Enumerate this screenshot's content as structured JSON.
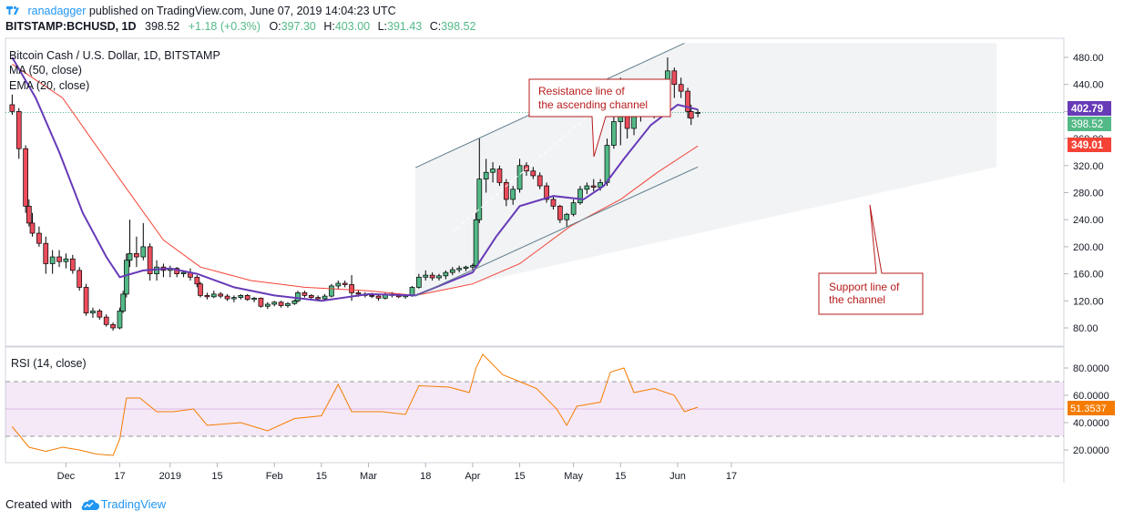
{
  "header": {
    "username": "ranadagger",
    "published_text": " published on TradingView.com, June 07, 2019 14:04:23 UTC",
    "symbol": "BITSTAMP:BCHUSD, 1D",
    "last": "398.52",
    "change": "+1.18 (+0.3%)",
    "o_label": "O:",
    "o": "397.30",
    "h_label": "H:",
    "h": "403.00",
    "l_label": "L:",
    "l": "391.43",
    "c_label": "C:",
    "c": "398.52"
  },
  "legend": {
    "title": "Bitcoin Cash / U.S. Dollar, 1D, BITSTAMP",
    "ma": "MA (50, close)",
    "ema": "EMA (20, close)",
    "rsi": "RSI (14, close)"
  },
  "annotations": {
    "resistance_line1": "Resistance line of",
    "resistance_line2": "the ascending channel",
    "support_line1": "Support line of",
    "support_line2": "the channel"
  },
  "footer": {
    "prefix": "Created with",
    "brand": "TradingView"
  },
  "colors": {
    "up": "#53b987",
    "down": "#eb4d5c",
    "ema": "#673ab7",
    "ma": "#f44336",
    "rsi": "#f57c00",
    "rsi_band": "#9c27b0",
    "channel": "#607d8b"
  },
  "chart_data": [
    {
      "type": "candlestick",
      "title": "Bitcoin Cash / U.S. Dollar, 1D, BITSTAMP",
      "x_start": "2018-11-15",
      "x_end": "2019-06-07",
      "x_ticks": [
        "Dec",
        "17",
        "2019",
        "15",
        "Feb",
        "15",
        "Mar",
        "18",
        "Apr",
        "15",
        "May",
        "15",
        "Jun",
        "17"
      ],
      "ylim": [
        40,
        500
      ],
      "y_ticks": [
        "80.00",
        "120.00",
        "160.00",
        "200.00",
        "240.00",
        "280.00",
        "320.00",
        "360.00",
        "400.00",
        "440.00",
        "480.00"
      ],
      "price_labels": {
        "ema20": "402.79",
        "last": "398.52",
        "ma50": "349.01"
      },
      "candles": [
        [
          "2018-11-15",
          410,
          425,
          395,
          400
        ],
        [
          "2018-11-17",
          400,
          405,
          330,
          345
        ],
        [
          "2018-11-19",
          345,
          350,
          250,
          260
        ],
        [
          "2018-11-20",
          260,
          270,
          230,
          235
        ],
        [
          "2018-11-21",
          235,
          250,
          215,
          220
        ],
        [
          "2018-11-23",
          220,
          230,
          200,
          205
        ],
        [
          "2018-11-25",
          205,
          215,
          160,
          175
        ],
        [
          "2018-11-27",
          175,
          195,
          160,
          185
        ],
        [
          "2018-11-29",
          185,
          195,
          170,
          178
        ],
        [
          "2018-12-01",
          178,
          190,
          168,
          182
        ],
        [
          "2018-12-03",
          182,
          188,
          160,
          165
        ],
        [
          "2018-12-05",
          165,
          170,
          135,
          140
        ],
        [
          "2018-12-07",
          140,
          145,
          98,
          102
        ],
        [
          "2018-12-09",
          102,
          110,
          95,
          105
        ],
        [
          "2018-12-11",
          105,
          108,
          92,
          96
        ],
        [
          "2018-12-13",
          96,
          100,
          82,
          85
        ],
        [
          "2018-12-15",
          85,
          88,
          76,
          80
        ],
        [
          "2018-12-17",
          80,
          110,
          78,
          105
        ],
        [
          "2018-12-18",
          105,
          135,
          102,
          130
        ],
        [
          "2018-12-19",
          130,
          190,
          125,
          180
        ],
        [
          "2018-12-20",
          180,
          240,
          170,
          190
        ],
        [
          "2018-12-22",
          190,
          215,
          170,
          185
        ],
        [
          "2018-12-24",
          185,
          235,
          180,
          200
        ],
        [
          "2018-12-26",
          200,
          205,
          150,
          160
        ],
        [
          "2018-12-28",
          160,
          180,
          150,
          170
        ],
        [
          "2018-12-30",
          170,
          175,
          155,
          165
        ],
        [
          "2019-01-01",
          165,
          172,
          155,
          168
        ],
        [
          "2019-01-03",
          168,
          170,
          155,
          160
        ],
        [
          "2019-01-05",
          160,
          165,
          155,
          162
        ],
        [
          "2019-01-07",
          162,
          168,
          150,
          155
        ],
        [
          "2019-01-09",
          155,
          158,
          140,
          145
        ],
        [
          "2019-01-10",
          145,
          148,
          125,
          128
        ],
        [
          "2019-01-12",
          128,
          132,
          122,
          126
        ],
        [
          "2019-01-14",
          126,
          135,
          124,
          130
        ],
        [
          "2019-01-16",
          130,
          133,
          124,
          127
        ],
        [
          "2019-01-18",
          127,
          130,
          120,
          123
        ],
        [
          "2019-01-20",
          123,
          128,
          118,
          125
        ],
        [
          "2019-01-22",
          125,
          130,
          122,
          128
        ],
        [
          "2019-01-24",
          128,
          130,
          120,
          122
        ],
        [
          "2019-01-26",
          122,
          126,
          118,
          124
        ],
        [
          "2019-01-28",
          124,
          125,
          110,
          112
        ],
        [
          "2019-01-30",
          112,
          118,
          108,
          115
        ],
        [
          "2019-02-01",
          115,
          120,
          112,
          118
        ],
        [
          "2019-02-03",
          118,
          120,
          110,
          113
        ],
        [
          "2019-02-05",
          113,
          118,
          110,
          116
        ],
        [
          "2019-02-07",
          116,
          122,
          114,
          120
        ],
        [
          "2019-02-08",
          120,
          135,
          118,
          132
        ],
        [
          "2019-02-10",
          132,
          135,
          125,
          128
        ],
        [
          "2019-02-12",
          128,
          130,
          122,
          125
        ],
        [
          "2019-02-14",
          125,
          128,
          120,
          123
        ],
        [
          "2019-02-16",
          123,
          130,
          120,
          127
        ],
        [
          "2019-02-18",
          127,
          145,
          125,
          142
        ],
        [
          "2019-02-20",
          142,
          150,
          138,
          146
        ],
        [
          "2019-02-22",
          146,
          150,
          140,
          144
        ],
        [
          "2019-02-24",
          144,
          158,
          120,
          132
        ],
        [
          "2019-02-26",
          132,
          136,
          126,
          130
        ],
        [
          "2019-02-28",
          130,
          133,
          125,
          128
        ],
        [
          "2019-03-02",
          128,
          132,
          124,
          127
        ],
        [
          "2019-03-04",
          127,
          130,
          120,
          124
        ],
        [
          "2019-03-06",
          124,
          132,
          122,
          130
        ],
        [
          "2019-03-08",
          130,
          133,
          125,
          128
        ],
        [
          "2019-03-10",
          128,
          131,
          124,
          126
        ],
        [
          "2019-03-12",
          126,
          130,
          123,
          128
        ],
        [
          "2019-03-14",
          128,
          142,
          126,
          140
        ],
        [
          "2019-03-16",
          140,
          160,
          138,
          155
        ],
        [
          "2019-03-18",
          155,
          165,
          150,
          158
        ],
        [
          "2019-03-20",
          158,
          162,
          150,
          154
        ],
        [
          "2019-03-22",
          154,
          160,
          150,
          157
        ],
        [
          "2019-03-24",
          157,
          165,
          152,
          162
        ],
        [
          "2019-03-26",
          162,
          170,
          158,
          166
        ],
        [
          "2019-03-28",
          166,
          172,
          162,
          168
        ],
        [
          "2019-03-30",
          168,
          172,
          164,
          170
        ],
        [
          "2019-04-01",
          170,
          175,
          165,
          172
        ],
        [
          "2019-04-02",
          172,
          250,
          170,
          240
        ],
        [
          "2019-04-03",
          240,
          360,
          235,
          300
        ],
        [
          "2019-04-05",
          300,
          330,
          280,
          310
        ],
        [
          "2019-04-07",
          310,
          325,
          295,
          315
        ],
        [
          "2019-04-09",
          315,
          320,
          290,
          295
        ],
        [
          "2019-04-11",
          295,
          300,
          260,
          270
        ],
        [
          "2019-04-13",
          270,
          290,
          262,
          285
        ],
        [
          "2019-04-15",
          285,
          330,
          280,
          320
        ],
        [
          "2019-04-17",
          320,
          325,
          305,
          312
        ],
        [
          "2019-04-19",
          312,
          318,
          300,
          305
        ],
        [
          "2019-04-21",
          305,
          310,
          285,
          290
        ],
        [
          "2019-04-23",
          290,
          295,
          265,
          270
        ],
        [
          "2019-04-25",
          270,
          275,
          255,
          260
        ],
        [
          "2019-04-27",
          260,
          262,
          235,
          240
        ],
        [
          "2019-04-29",
          240,
          250,
          230,
          248
        ],
        [
          "2019-05-01",
          248,
          270,
          245,
          265
        ],
        [
          "2019-05-03",
          265,
          290,
          262,
          285
        ],
        [
          "2019-05-05",
          285,
          295,
          278,
          290
        ],
        [
          "2019-05-07",
          290,
          300,
          282,
          288
        ],
        [
          "2019-05-09",
          288,
          300,
          283,
          295
        ],
        [
          "2019-05-11",
          295,
          360,
          290,
          350
        ],
        [
          "2019-05-13",
          350,
          400,
          345,
          385
        ],
        [
          "2019-05-15",
          385,
          450,
          350,
          410
        ],
        [
          "2019-05-17",
          410,
          430,
          360,
          375
        ],
        [
          "2019-05-19",
          375,
          415,
          365,
          405
        ],
        [
          "2019-05-21",
          405,
          440,
          385,
          420
        ],
        [
          "2019-05-23",
          420,
          430,
          395,
          400
        ],
        [
          "2019-05-25",
          400,
          420,
          390,
          410
        ],
        [
          "2019-05-27",
          410,
          445,
          405,
          440
        ],
        [
          "2019-05-29",
          440,
          480,
          425,
          460
        ],
        [
          "2019-05-31",
          460,
          465,
          420,
          440
        ],
        [
          "2019-06-02",
          440,
          450,
          420,
          430
        ],
        [
          "2019-06-04",
          430,
          435,
          390,
          400
        ],
        [
          "2019-06-05",
          400,
          410,
          380,
          390
        ],
        [
          "2019-06-07",
          397.3,
          403,
          391.43,
          398.52
        ]
      ],
      "ema20": [
        [
          "2018-11-15",
          480
        ],
        [
          "2018-11-22",
          420
        ],
        [
          "2018-11-29",
          340
        ],
        [
          "2018-12-06",
          250
        ],
        [
          "2018-12-13",
          185
        ],
        [
          "2018-12-17",
          155
        ],
        [
          "2018-12-24",
          165
        ],
        [
          "2019-01-01",
          168
        ],
        [
          "2019-01-09",
          160
        ],
        [
          "2019-01-20",
          140
        ],
        [
          "2019-02-01",
          128
        ],
        [
          "2019-02-15",
          120
        ],
        [
          "2019-03-01",
          130
        ],
        [
          "2019-03-15",
          128
        ],
        [
          "2019-04-01",
          162
        ],
        [
          "2019-04-08",
          215
        ],
        [
          "2019-04-15",
          260
        ],
        [
          "2019-04-25",
          275
        ],
        [
          "2019-05-04",
          270
        ],
        [
          "2019-05-10",
          290
        ],
        [
          "2019-05-16",
          330
        ],
        [
          "2019-05-24",
          380
        ],
        [
          "2019-06-01",
          410
        ],
        [
          "2019-06-07",
          403
        ]
      ],
      "ma50": [
        [
          "2018-11-15",
          470
        ],
        [
          "2018-11-30",
          420
        ],
        [
          "2018-12-17",
          300
        ],
        [
          "2018-12-30",
          210
        ],
        [
          "2019-01-10",
          170
        ],
        [
          "2019-01-25",
          150
        ],
        [
          "2019-02-10",
          140
        ],
        [
          "2019-03-01",
          135
        ],
        [
          "2019-03-15",
          128
        ],
        [
          "2019-04-01",
          145
        ],
        [
          "2019-04-15",
          175
        ],
        [
          "2019-04-30",
          230
        ],
        [
          "2019-05-15",
          270
        ],
        [
          "2019-05-26",
          310
        ],
        [
          "2019-06-07",
          349
        ]
      ],
      "channel": {
        "resistance": [
          [
            "2019-03-15",
            317
          ],
          [
            "2019-06-03",
            501
          ]
        ],
        "support": [
          [
            "2019-03-15",
            127
          ],
          [
            "2019-06-07",
            318
          ]
        ]
      }
    },
    {
      "type": "line",
      "title": "RSI (14, close)",
      "ylim": [
        10,
        95
      ],
      "y_ticks": [
        "20.0000",
        "40.0000",
        "60.0000",
        "80.0000"
      ],
      "band": [
        30,
        70
      ],
      "last_label": "51.3537",
      "rsi": [
        [
          "2018-11-15",
          37
        ],
        [
          "2018-11-20",
          22
        ],
        [
          "2018-11-25",
          19
        ],
        [
          "2018-11-30",
          22
        ],
        [
          "2018-12-05",
          20
        ],
        [
          "2018-12-10",
          17
        ],
        [
          "2018-12-15",
          16
        ],
        [
          "2018-12-17",
          28
        ],
        [
          "2018-12-19",
          58
        ],
        [
          "2018-12-23",
          58
        ],
        [
          "2018-12-28",
          48
        ],
        [
          "2019-01-02",
          48
        ],
        [
          "2019-01-08",
          50
        ],
        [
          "2019-01-12",
          38
        ],
        [
          "2019-01-22",
          40
        ],
        [
          "2019-01-30",
          34
        ],
        [
          "2019-02-07",
          43
        ],
        [
          "2019-02-15",
          45
        ],
        [
          "2019-02-20",
          68
        ],
        [
          "2019-02-24",
          48
        ],
        [
          "2019-03-05",
          48
        ],
        [
          "2019-03-12",
          46
        ],
        [
          "2019-03-16",
          67
        ],
        [
          "2019-03-25",
          66
        ],
        [
          "2019-03-31",
          62
        ],
        [
          "2019-04-02",
          80
        ],
        [
          "2019-04-04",
          90
        ],
        [
          "2019-04-10",
          75
        ],
        [
          "2019-04-15",
          70
        ],
        [
          "2019-04-20",
          65
        ],
        [
          "2019-04-26",
          50
        ],
        [
          "2019-04-29",
          38
        ],
        [
          "2019-05-02",
          52
        ],
        [
          "2019-05-09",
          55
        ],
        [
          "2019-05-12",
          77
        ],
        [
          "2019-05-16",
          80
        ],
        [
          "2019-05-19",
          62
        ],
        [
          "2019-05-25",
          65
        ],
        [
          "2019-05-31",
          60
        ],
        [
          "2019-06-03",
          48
        ],
        [
          "2019-06-07",
          51.35
        ]
      ]
    }
  ]
}
